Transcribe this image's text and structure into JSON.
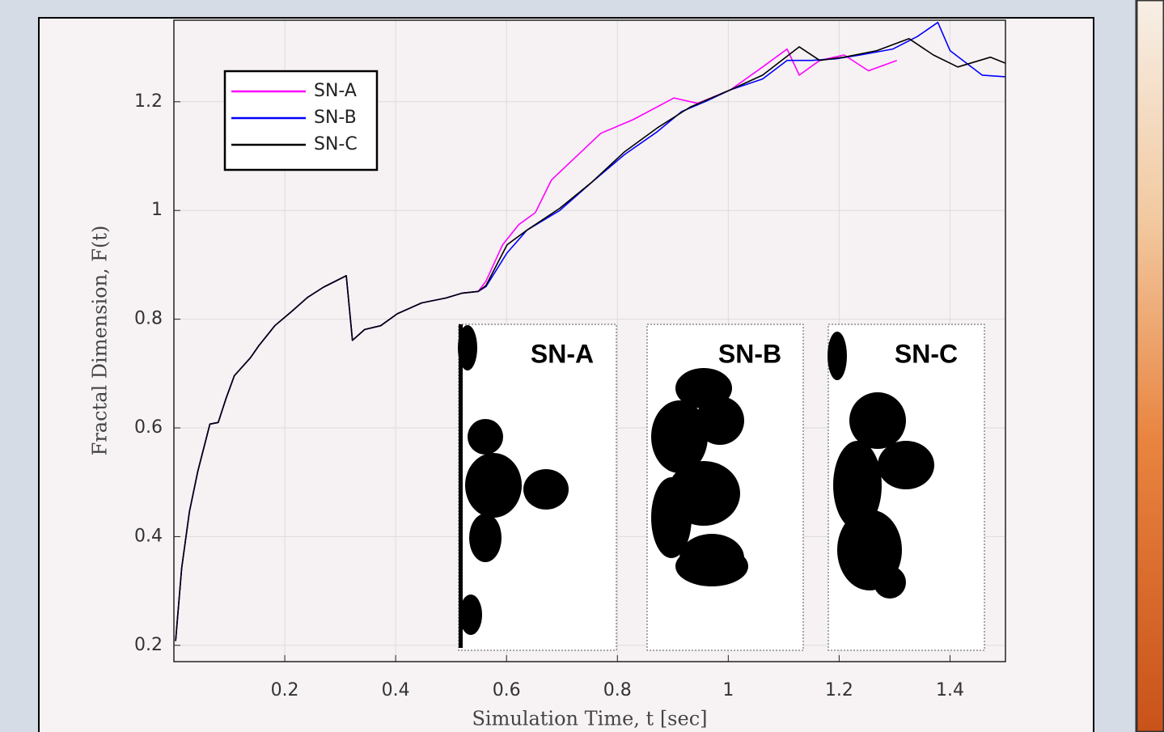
{
  "chart_data": {
    "type": "line",
    "xlabel": "Simulation Time, t [sec]",
    "ylabel": "Fractal Dimension, F(t)",
    "xlim": [
      0,
      1.5
    ],
    "ylim": [
      0.17,
      1.35
    ],
    "xticks": [
      0.2,
      0.4,
      0.6,
      0.8,
      1,
      1.2,
      1.4
    ],
    "yticks": [
      0.2,
      0.4,
      0.6,
      0.8,
      1,
      1.2
    ],
    "grid": true,
    "legend": "upper left",
    "annotations": [
      "SN-A",
      "SN-B",
      "SN-C"
    ],
    "series": [
      {
        "name": "SN-A",
        "color": "#ff00ff",
        "x": [
          0.003,
          0.014,
          0.028,
          0.043,
          0.065,
          0.08,
          0.094,
          0.109,
          0.138,
          0.153,
          0.182,
          0.211,
          0.241,
          0.27,
          0.311,
          0.322,
          0.344,
          0.373,
          0.403,
          0.447,
          0.491,
          0.52,
          0.549,
          0.563,
          0.593,
          0.622,
          0.652,
          0.681,
          0.711,
          0.77,
          0.828,
          0.902,
          0.945,
          1.004,
          1.062,
          1.106,
          1.128,
          1.165,
          1.209,
          1.253,
          1.304
        ],
        "values": [
          0.208,
          0.342,
          0.446,
          0.52,
          0.607,
          0.61,
          0.654,
          0.696,
          0.729,
          0.751,
          0.788,
          0.813,
          0.84,
          0.859,
          0.88,
          0.761,
          0.781,
          0.788,
          0.81,
          0.83,
          0.839,
          0.848,
          0.851,
          0.87,
          0.937,
          0.974,
          0.996,
          1.056,
          1.085,
          1.142,
          1.167,
          1.207,
          1.197,
          1.222,
          1.264,
          1.297,
          1.249,
          1.276,
          1.286,
          1.257,
          1.276
        ]
      },
      {
        "name": "SN-B",
        "color": "#0000ff",
        "x": [
          0.003,
          0.014,
          0.028,
          0.043,
          0.065,
          0.08,
          0.094,
          0.109,
          0.138,
          0.153,
          0.182,
          0.211,
          0.241,
          0.27,
          0.311,
          0.322,
          0.344,
          0.373,
          0.403,
          0.447,
          0.491,
          0.52,
          0.549,
          0.563,
          0.601,
          0.637,
          0.696,
          0.755,
          0.813,
          0.872,
          0.916,
          0.96,
          1.004,
          1.062,
          1.106,
          1.15,
          1.194,
          1.238,
          1.297,
          1.341,
          1.378,
          1.4,
          1.458,
          1.5
        ],
        "values": [
          0.208,
          0.342,
          0.446,
          0.52,
          0.607,
          0.61,
          0.654,
          0.696,
          0.729,
          0.751,
          0.788,
          0.813,
          0.84,
          0.859,
          0.88,
          0.761,
          0.781,
          0.788,
          0.81,
          0.83,
          0.839,
          0.848,
          0.851,
          0.86,
          0.922,
          0.964,
          1.0,
          1.053,
          1.103,
          1.145,
          1.182,
          1.201,
          1.222,
          1.242,
          1.276,
          1.276,
          1.279,
          1.286,
          1.297,
          1.32,
          1.346,
          1.294,
          1.249,
          1.246
        ]
      },
      {
        "name": "SN-C",
        "color": "#000000",
        "x": [
          0.003,
          0.014,
          0.028,
          0.043,
          0.065,
          0.08,
          0.094,
          0.109,
          0.138,
          0.153,
          0.182,
          0.211,
          0.241,
          0.27,
          0.311,
          0.322,
          0.344,
          0.373,
          0.403,
          0.447,
          0.491,
          0.52,
          0.549,
          0.563,
          0.601,
          0.637,
          0.696,
          0.755,
          0.813,
          0.872,
          0.931,
          1.004,
          1.062,
          1.128,
          1.165,
          1.209,
          1.268,
          1.326,
          1.37,
          1.414,
          1.473,
          1.5
        ],
        "values": [
          0.208,
          0.342,
          0.446,
          0.52,
          0.607,
          0.61,
          0.654,
          0.696,
          0.729,
          0.751,
          0.788,
          0.813,
          0.84,
          0.859,
          0.88,
          0.761,
          0.781,
          0.788,
          0.81,
          0.83,
          0.839,
          0.848,
          0.851,
          0.862,
          0.937,
          0.964,
          1.004,
          1.053,
          1.108,
          1.152,
          1.19,
          1.222,
          1.249,
          1.301,
          1.276,
          1.282,
          1.294,
          1.316,
          1.286,
          1.264,
          1.282,
          1.271
        ]
      }
    ]
  }
}
